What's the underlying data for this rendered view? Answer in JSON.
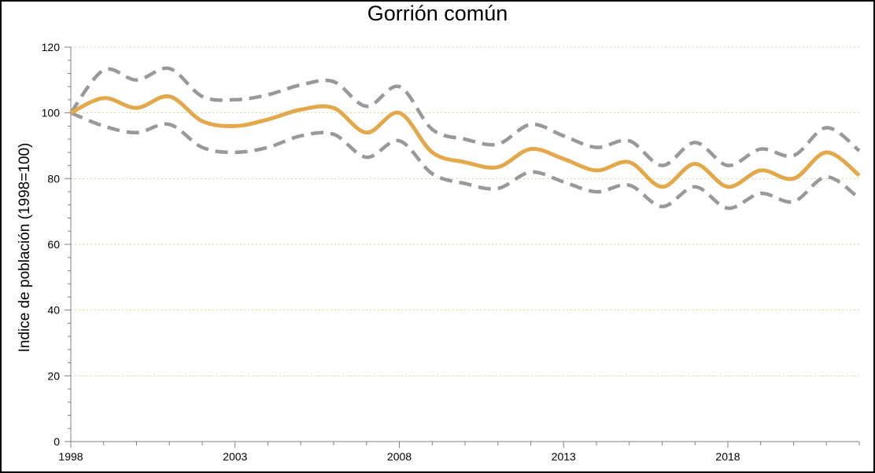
{
  "chart_data": {
    "type": "line",
    "title": "Gorrión común",
    "xlabel": "",
    "ylabel": "Indice de población (1998=100)",
    "xlim": [
      1998,
      2022
    ],
    "ylim": [
      0,
      120
    ],
    "x_ticks": [
      1998,
      2003,
      2008,
      2013,
      2018
    ],
    "y_ticks": [
      0,
      20,
      40,
      60,
      80,
      100,
      120
    ],
    "grid": true,
    "legend": "none",
    "x": [
      1998,
      1999,
      2000,
      2001,
      2002,
      2003,
      2004,
      2005,
      2006,
      2007,
      2008,
      2009,
      2010,
      2011,
      2012,
      2013,
      2014,
      2015,
      2016,
      2017,
      2018,
      2019,
      2020,
      2021,
      2022
    ],
    "series": [
      {
        "role": "index",
        "color": "#E3A84A",
        "style": "solid",
        "values": [
          100,
          104.5,
          101.5,
          105,
          97.5,
          96,
          98,
          101,
          101.5,
          94,
          100,
          88,
          85,
          83.5,
          89,
          86,
          82.5,
          85,
          77.5,
          84.5,
          77.5,
          82.5,
          80,
          88,
          81
        ]
      },
      {
        "role": "upper",
        "color": "#999999",
        "style": "dashed",
        "values": [
          100,
          113,
          110,
          113.5,
          105,
          104,
          105.5,
          108.5,
          109.5,
          102,
          108,
          95,
          92,
          90.5,
          96.5,
          93,
          89.5,
          91.5,
          84,
          91,
          84,
          89,
          87,
          95.5,
          88.5
        ]
      },
      {
        "role": "lower",
        "color": "#999999",
        "style": "dashed",
        "values": [
          100,
          96,
          94,
          96.5,
          89.5,
          88,
          89.5,
          93,
          93.5,
          86.5,
          91.5,
          81.5,
          78.5,
          77,
          82,
          79,
          76,
          78,
          71.5,
          77.5,
          71,
          75.5,
          73,
          80.5,
          74
        ]
      }
    ]
  }
}
